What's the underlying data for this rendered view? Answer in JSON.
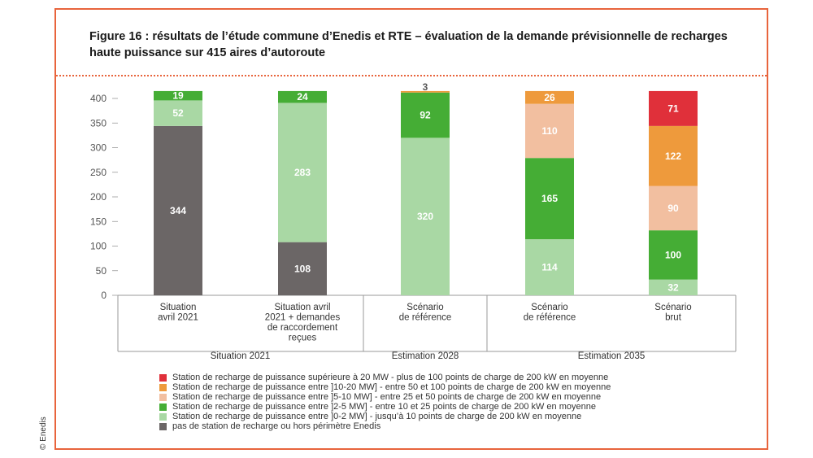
{
  "figure": {
    "title_line1": "Figure 16 : résultats de l’étude commune d’Enedis et RTE – évaluation de la demande prévisionnelle de recharges",
    "title_line2": "haute puissance sur 415 aires d’autoroute",
    "credit": "© Enedis"
  },
  "colors": {
    "frame": "#e8643c",
    "gt20": "#e0303a",
    "p10_20": "#ee9a3c",
    "p5_10": "#f2bfa0",
    "p2_5": "#45ad35",
    "p0_2": "#a9d8a4",
    "none": "#6b6666"
  },
  "chart_data": {
    "type": "bar",
    "stacked": true,
    "title": "Figure 16 : résultats de l’étude commune d’Enedis et RTE – évaluation de la demande prévisionnelle de recharges haute puissance sur 415 aires d’autoroute",
    "categories": [
      [
        "Situation",
        "avril 2021"
      ],
      [
        "Situation avril",
        "2021 + demandes",
        "de raccordement",
        "reçues"
      ],
      [
        "Scénario",
        "de référence"
      ],
      [
        "Scénario",
        "de référence"
      ],
      [
        "Scénario",
        "brut"
      ]
    ],
    "groups": [
      {
        "label": "Situation 2021",
        "categories": [
          0,
          1
        ]
      },
      {
        "label": "Estimation 2028",
        "categories": [
          2
        ]
      },
      {
        "label": "Estimation 2035",
        "categories": [
          3,
          4
        ]
      }
    ],
    "ylim": [
      0,
      400
    ],
    "yticks": [
      0,
      50,
      100,
      150,
      200,
      250,
      300,
      350,
      400
    ],
    "series": [
      {
        "name": "pas de station de recharge ou hors périmètre Enedis",
        "key": "none",
        "values": [
          344,
          108,
          null,
          null,
          null
        ]
      },
      {
        "name": "Station de recharge de puissance entre ]0-2 MW] - jusqu’à 10 points de charge de 200 kW en moyenne",
        "key": "p0_2",
        "values": [
          52,
          283,
          320,
          114,
          32
        ]
      },
      {
        "name": "Station de recharge de puissance entre ]2-5 MW] - entre 10 et 25 points de charge de 200 kW en moyenne",
        "key": "p2_5",
        "values": [
          19,
          24,
          92,
          165,
          100
        ]
      },
      {
        "name": "Station de recharge de puissance entre ]5-10 MW] - entre 25 et 50 points de charge de 200 kW en moyenne",
        "key": "p5_10",
        "values": [
          null,
          null,
          null,
          110,
          90
        ]
      },
      {
        "name": "Station de recharge de puissance entre ]10-20 MW] - entre 50 et 100 points de charge de 200 kW en moyenne",
        "key": "p10_20",
        "values": [
          null,
          null,
          3,
          26,
          122
        ]
      },
      {
        "name": "Station de recharge de puissance supérieure à 20 MW - plus de 100 points de charge de 200 kW en moyenne",
        "key": "gt20",
        "values": [
          null,
          null,
          null,
          null,
          71
        ]
      }
    ],
    "legend": [
      {
        "key": "gt20",
        "label": "Station de recharge de puissance supérieure à 20 MW - plus de 100 points de charge de 200 kW en moyenne"
      },
      {
        "key": "p10_20",
        "label": "Station de recharge de puissance entre ]10-20 MW] - entre 50 et 100 points de charge de 200 kW en moyenne"
      },
      {
        "key": "p5_10",
        "label": "Station de recharge de puissance entre ]5-10 MW] - entre 25 et 50 points de charge de 200 kW en moyenne"
      },
      {
        "key": "p2_5",
        "label": "Station de recharge de puissance entre ]2-5 MW] - entre 10 et 25 points de charge de 200 kW en moyenne"
      },
      {
        "key": "p0_2",
        "label": "Station de recharge de puissance entre ]0-2 MW] - jusqu’à 10 points de charge de 200 kW en moyenne"
      },
      {
        "key": "none",
        "label": "pas de station de recharge ou hors périmètre Enedis"
      }
    ],
    "legend_position": "bottom",
    "grid": false
  }
}
